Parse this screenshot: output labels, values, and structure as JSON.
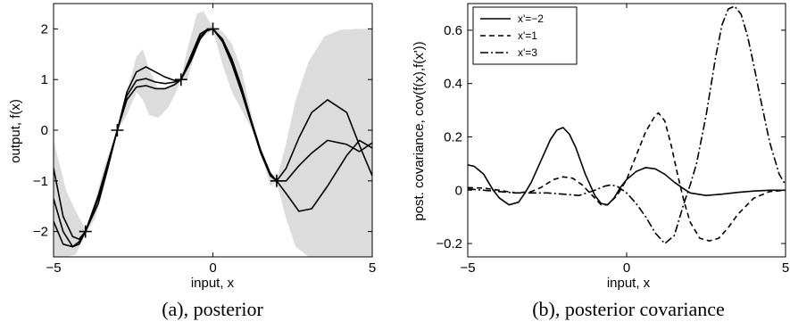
{
  "chart_data": [
    {
      "type": "line",
      "caption": "(a), posterior",
      "xlabel": "input, x",
      "ylabel": "output, f(x)",
      "xlim": [
        -5,
        5
      ],
      "ylim": [
        -2.5,
        2.5
      ],
      "xticks": [
        -5,
        0,
        5
      ],
      "yticks": [
        -2,
        -1,
        0,
        1,
        2
      ],
      "xtick_labels": [
        "−5",
        "0",
        "5"
      ],
      "ytick_labels": [
        "−2",
        "−1",
        "0",
        "1",
        "2"
      ],
      "grid": false,
      "band_color": "#dcdcdc",
      "band": {
        "x": [
          -5,
          -4.6,
          -4.3,
          -4,
          -3.7,
          -3.4,
          -3,
          -2.7,
          -2.4,
          -2.2,
          -2,
          -1.7,
          -1.4,
          -1.2,
          -1,
          -0.8,
          -0.5,
          -0.3,
          0,
          0.3,
          0.6,
          0.9,
          1.2,
          1.5,
          1.8,
          2,
          2.3,
          2.6,
          3,
          3.5,
          4,
          4.5,
          5
        ],
        "upper": [
          -0.2,
          -1.2,
          -1.6,
          -1.95,
          -1.4,
          -0.7,
          0.02,
          0.75,
          1.45,
          1.6,
          1.2,
          0.8,
          0.85,
          0.95,
          1.02,
          1.6,
          2.3,
          2.35,
          2.02,
          1.95,
          1.7,
          1.2,
          0.35,
          -0.4,
          -0.85,
          -0.98,
          -0.25,
          0.6,
          1.35,
          1.85,
          1.98,
          2.0,
          2.0
        ],
        "lower": [
          -2.5,
          -2.5,
          -2.45,
          -2.05,
          -1.75,
          -1.1,
          -0.02,
          0.3,
          0.75,
          0.6,
          0.3,
          0.25,
          0.45,
          0.7,
          0.98,
          1.0,
          1.65,
          1.85,
          1.98,
          1.3,
          0.75,
          0.4,
          0.05,
          -0.4,
          -1.1,
          -1.02,
          -1.75,
          -2.3,
          -2.5,
          -2.5,
          -2.5,
          -2.5,
          -2.5
        ]
      },
      "series": [
        {
          "x": [
            -5,
            -4.7,
            -4.4,
            -4.2,
            -4,
            -3.6,
            -3.3,
            -3,
            -2.7,
            -2.4,
            -2.1,
            -1.8,
            -1.5,
            -1.2,
            -1,
            -0.7,
            -0.4,
            -0.2,
            0,
            0.3,
            0.6,
            0.9,
            1.2,
            1.5,
            1.8,
            2,
            2.3,
            2.7,
            3.1,
            3.6,
            4.2,
            4.6,
            5
          ],
          "y": [
            -0.75,
            -1.7,
            -2.1,
            -2.15,
            -2.0,
            -1.45,
            -0.75,
            0.0,
            0.75,
            1.15,
            1.25,
            1.15,
            1.05,
            0.98,
            1.0,
            1.35,
            1.8,
            1.96,
            2.0,
            1.8,
            1.4,
            0.85,
            0.2,
            -0.4,
            -0.85,
            -1.0,
            -0.75,
            -0.15,
            0.35,
            0.6,
            0.35,
            -0.3,
            -0.9
          ]
        },
        {
          "x": [
            -5,
            -4.7,
            -4.4,
            -4.2,
            -4,
            -3.6,
            -3.3,
            -3,
            -2.7,
            -2.4,
            -2.1,
            -1.8,
            -1.5,
            -1.2,
            -1,
            -0.7,
            -0.4,
            -0.2,
            0,
            0.3,
            0.6,
            0.9,
            1.2,
            1.5,
            1.8,
            2,
            2.3,
            2.7,
            3.1,
            3.6,
            4.2,
            4.6,
            5
          ],
          "y": [
            -1.35,
            -2.0,
            -2.3,
            -2.25,
            -2.0,
            -1.35,
            -0.7,
            0.0,
            0.68,
            0.98,
            1.02,
            0.95,
            0.92,
            0.95,
            1.0,
            1.4,
            1.85,
            1.97,
            2.0,
            1.78,
            1.35,
            0.8,
            0.18,
            -0.42,
            -0.88,
            -1.0,
            -1.0,
            -0.7,
            -0.45,
            -0.2,
            -0.28,
            -0.42,
            -0.25
          ]
        },
        {
          "x": [
            -5,
            -4.7,
            -4.4,
            -4.2,
            -4,
            -3.6,
            -3.3,
            -3,
            -2.7,
            -2.4,
            -2.1,
            -1.8,
            -1.5,
            -1.2,
            -1,
            -0.7,
            -0.4,
            -0.2,
            0,
            0.3,
            0.6,
            0.9,
            1.2,
            1.5,
            1.8,
            2,
            2.3,
            2.7,
            3.1,
            3.6,
            4.2,
            4.6,
            5
          ],
          "y": [
            -1.8,
            -2.25,
            -2.3,
            -2.2,
            -2.0,
            -1.3,
            -0.65,
            0.0,
            0.6,
            0.85,
            0.88,
            0.82,
            0.82,
            0.9,
            1.0,
            1.45,
            1.9,
            1.98,
            2.0,
            1.75,
            1.3,
            0.75,
            0.15,
            -0.45,
            -0.9,
            -1.0,
            -1.25,
            -1.6,
            -1.55,
            -1.1,
            -0.5,
            -0.2,
            -0.35
          ]
        }
      ],
      "observations": {
        "x": [
          -4,
          -3,
          -1,
          0,
          2
        ],
        "y": [
          -2,
          0,
          1,
          2,
          -1
        ]
      }
    },
    {
      "type": "line",
      "caption": "(b), posterior covariance",
      "xlabel": "input, x",
      "ylabel": "post. covariance, cov(f(x),f(x'))",
      "xlim": [
        -5,
        5
      ],
      "ylim": [
        -0.25,
        0.7
      ],
      "xticks": [
        -5,
        0,
        5
      ],
      "yticks": [
        -0.2,
        0,
        0.2,
        0.4,
        0.6
      ],
      "xtick_labels": [
        "−5",
        "0",
        "5"
      ],
      "ytick_labels": [
        "−0.2",
        "0",
        "0.2",
        "0.4",
        "0.6"
      ],
      "grid": false,
      "legend_position": "top-left",
      "series": [
        {
          "name": "x'=−2",
          "dash": "solid",
          "x": [
            -5,
            -4.8,
            -4.5,
            -4.2,
            -4,
            -3.7,
            -3.4,
            -3.2,
            -3,
            -2.7,
            -2.4,
            -2.2,
            -2,
            -1.8,
            -1.6,
            -1.3,
            -1,
            -0.8,
            -0.6,
            -0.4,
            -0.2,
            0,
            0.3,
            0.6,
            0.9,
            1.2,
            1.5,
            1.8,
            2,
            2.5,
            3,
            3.5,
            4,
            4.5,
            5
          ],
          "y": [
            0.095,
            0.09,
            0.06,
            0.0,
            -0.03,
            -0.055,
            -0.045,
            -0.01,
            0.03,
            0.11,
            0.19,
            0.225,
            0.235,
            0.21,
            0.16,
            0.06,
            -0.02,
            -0.05,
            -0.055,
            -0.03,
            0.01,
            0.04,
            0.07,
            0.085,
            0.08,
            0.06,
            0.03,
            0.005,
            -0.01,
            -0.02,
            -0.015,
            -0.008,
            -0.003,
            0.0,
            0.0
          ]
        },
        {
          "name": "x'=1",
          "dash": "dashed",
          "x": [
            -5,
            -4.5,
            -4,
            -3.5,
            -3,
            -2.7,
            -2.3,
            -2,
            -1.7,
            -1.4,
            -1,
            -0.8,
            -0.6,
            -0.3,
            0,
            0.3,
            0.6,
            0.9,
            1,
            1.2,
            1.4,
            1.6,
            1.8,
            2,
            2.3,
            2.6,
            2.9,
            3.2,
            3.5,
            4,
            4.5,
            5
          ],
          "y": [
            0.01,
            0.008,
            0.0,
            -0.01,
            -0.005,
            0.01,
            0.04,
            0.05,
            0.045,
            0.02,
            -0.03,
            -0.055,
            -0.055,
            -0.02,
            0.04,
            0.13,
            0.22,
            0.28,
            0.29,
            0.26,
            0.17,
            0.06,
            -0.04,
            -0.12,
            -0.18,
            -0.19,
            -0.18,
            -0.14,
            -0.09,
            -0.03,
            -0.005,
            0.0
          ]
        },
        {
          "name": "x'=3",
          "dash": "dashdot",
          "x": [
            -5,
            -4.5,
            -4,
            -3.5,
            -3,
            -2.5,
            -2,
            -1.5,
            -1,
            -0.7,
            -0.5,
            -0.3,
            0,
            0.3,
            0.6,
            0.9,
            1.2,
            1.5,
            1.8,
            2,
            2.2,
            2.5,
            2.8,
            3,
            3.2,
            3.4,
            3.6,
            3.8,
            4,
            4.2,
            4.5,
            4.8,
            5
          ],
          "y": [
            0.005,
            0.0,
            -0.005,
            -0.01,
            -0.01,
            -0.01,
            -0.015,
            -0.02,
            0.0,
            0.015,
            0.02,
            0.015,
            -0.01,
            -0.05,
            -0.1,
            -0.16,
            -0.2,
            -0.17,
            -0.05,
            0.02,
            0.1,
            0.28,
            0.5,
            0.62,
            0.68,
            0.69,
            0.66,
            0.58,
            0.47,
            0.35,
            0.18,
            0.06,
            0.02
          ]
        }
      ]
    }
  ]
}
